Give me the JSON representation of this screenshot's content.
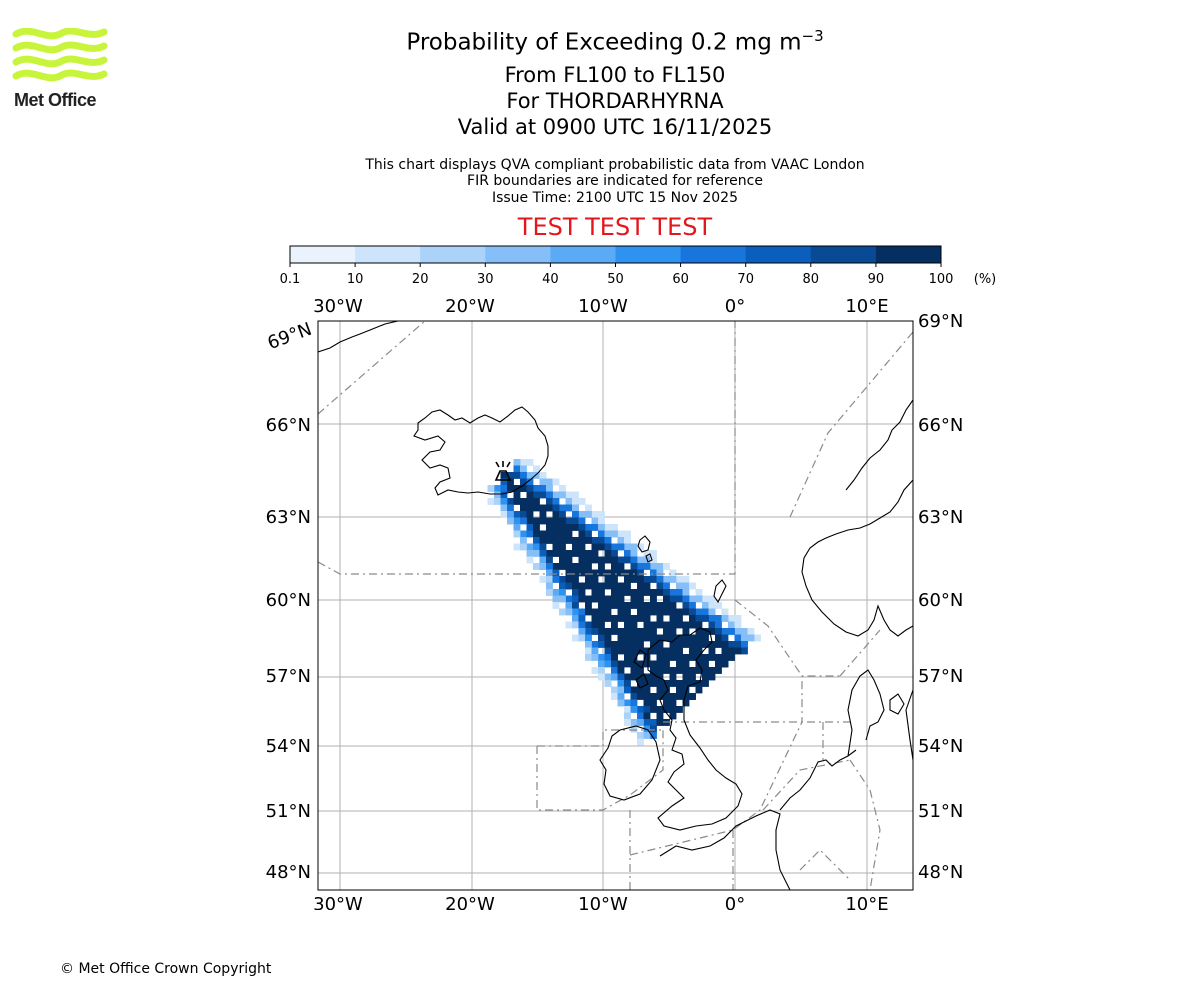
{
  "branding": {
    "logo_text": "Met Office",
    "logo_color": "#c8f53b"
  },
  "header": {
    "title_main": "Probability of Exceeding 0.2 mg m",
    "title_superscript": "−3",
    "level_range": "From FL100 to FL150",
    "volcano": "For THORDARHYRNA",
    "valid_time": "Valid at 0900 UTC 16/11/2025",
    "info_line_1": "This chart displays QVA compliant probabilistic data from VAAC London",
    "info_line_2": "FIR boundaries are indicated for reference",
    "issue_time": "Issue Time: 2100 UTC 15 Nov 2025",
    "test_banner": "TEST TEST TEST",
    "test_color": "#e3161b"
  },
  "colorbar": {
    "ticks": [
      "0.1",
      "10",
      "20",
      "30",
      "40",
      "50",
      "60",
      "70",
      "80",
      "90",
      "100"
    ],
    "unit": "(%)",
    "colors": [
      "#eaf3fd",
      "#cde4fa",
      "#abd2f9",
      "#86bff8",
      "#5aaaf6",
      "#2e92f0",
      "#1775dc",
      "#0a5ebc",
      "#084a95",
      "#052f61"
    ]
  },
  "map": {
    "lon_labels": [
      "30°W",
      "20°W",
      "10°W",
      "0°",
      "10°E"
    ],
    "lat_labels_left": [
      "69°N",
      "66°N",
      "63°N",
      "60°N",
      "57°N",
      "54°N",
      "51°N",
      "48°N"
    ],
    "lat_labels_right": [
      "69°N",
      "66°N",
      "63°N",
      "60°N",
      "57°N",
      "54°N",
      "51°N",
      "48°N"
    ],
    "volcano_marker": "volcano"
  },
  "footer": {
    "copyright": "© Met Office Crown Copyright"
  }
}
